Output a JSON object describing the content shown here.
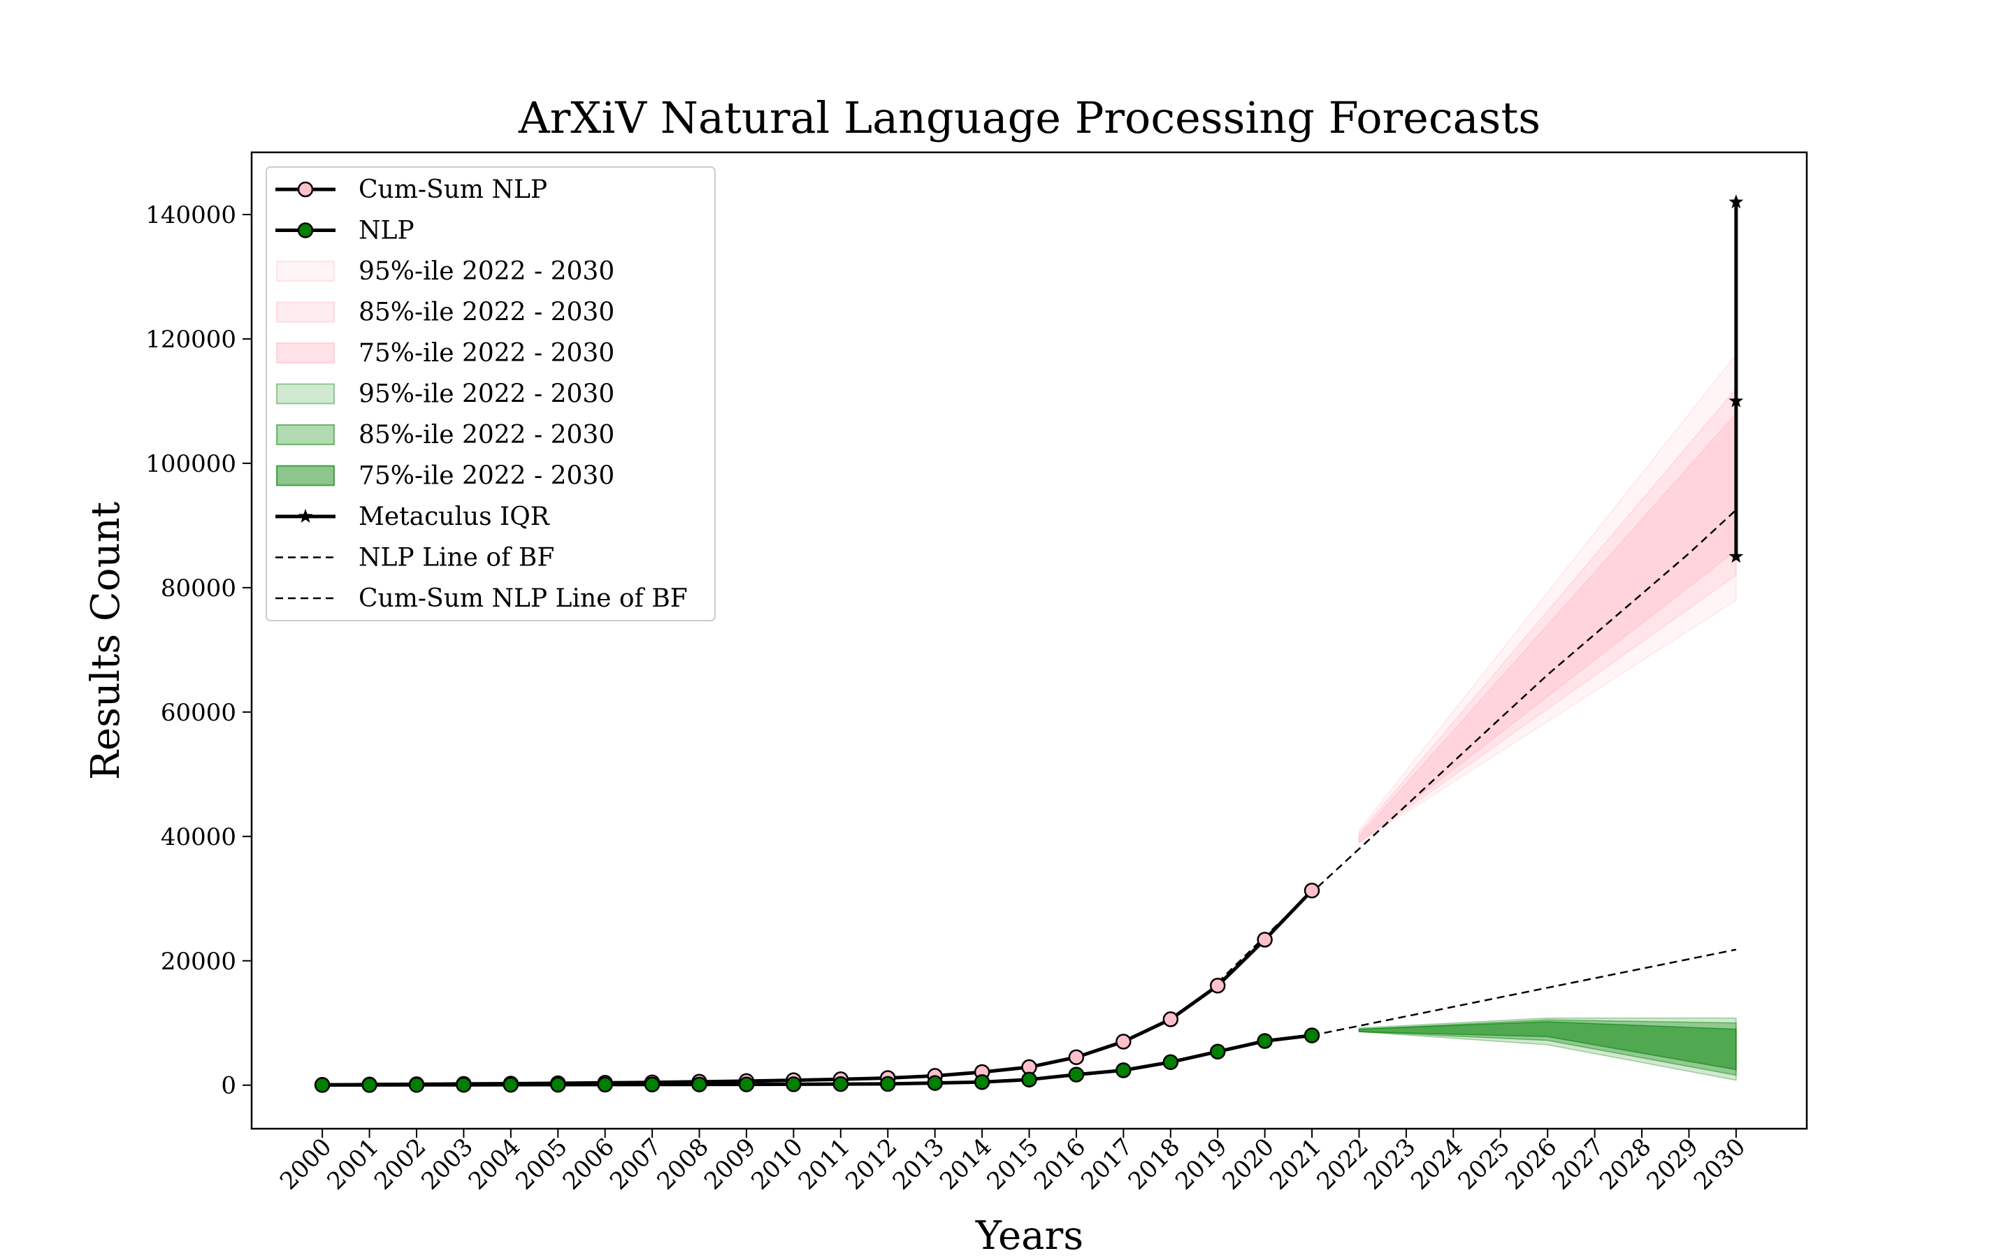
{
  "chart_data": {
    "type": "line",
    "title": "ArXiV Natural Language Processing Forecasts",
    "xlabel": "Years",
    "ylabel": "Results Count",
    "xlim": [
      1998.5,
      2031.5
    ],
    "ylim": [
      -7000,
      150000
    ],
    "grid": false,
    "legend_position": "top-left",
    "x_ticks": [
      2000,
      2001,
      2002,
      2003,
      2004,
      2005,
      2006,
      2007,
      2008,
      2009,
      2010,
      2011,
      2012,
      2013,
      2014,
      2015,
      2016,
      2017,
      2018,
      2019,
      2020,
      2021,
      2022,
      2023,
      2024,
      2025,
      2026,
      2027,
      2028,
      2029,
      2030
    ],
    "y_ticks": [
      0,
      20000,
      40000,
      60000,
      80000,
      100000,
      120000,
      140000
    ],
    "series": [
      {
        "name": "Cum-Sum NLP",
        "kind": "line-markers",
        "marker_color": "#ffc0cb",
        "x": [
          2000,
          2001,
          2002,
          2003,
          2004,
          2005,
          2006,
          2007,
          2008,
          2009,
          2010,
          2011,
          2012,
          2013,
          2014,
          2015,
          2016,
          2017,
          2018,
          2019,
          2020,
          2021
        ],
        "y": [
          50,
          100,
          150,
          200,
          250,
          300,
          380,
          450,
          550,
          650,
          800,
          950,
          1150,
          1500,
          2100,
          2900,
          4500,
          7000,
          10600,
          16000,
          23400,
          31300
        ]
      },
      {
        "name": "NLP",
        "kind": "line-markers",
        "marker_color": "#008000",
        "x": [
          2000,
          2001,
          2002,
          2003,
          2004,
          2005,
          2006,
          2007,
          2008,
          2009,
          2010,
          2011,
          2012,
          2013,
          2014,
          2015,
          2016,
          2017,
          2018,
          2019,
          2020,
          2021
        ],
        "y": [
          30,
          40,
          50,
          60,
          70,
          80,
          90,
          100,
          110,
          120,
          150,
          180,
          200,
          350,
          500,
          900,
          1700,
          2400,
          3700,
          5400,
          7100,
          8000
        ]
      }
    ],
    "bands": [
      {
        "name": "95%-ile 2022 - 2030",
        "color": "#ffc0cb",
        "opacity": 0.18,
        "x": [
          2022,
          2030
        ],
        "low": [
          39000,
          78000
        ],
        "high": [
          41000,
          117500
        ]
      },
      {
        "name": "85%-ile 2022 - 2030",
        "color": "#ffc0cb",
        "opacity": 0.3,
        "x": [
          2022,
          2030
        ],
        "low": [
          39000,
          82000
        ],
        "high": [
          40500,
          112000
        ]
      },
      {
        "name": "75%-ile 2022 - 2030",
        "color": "#ffc0cb",
        "opacity": 0.45,
        "x": [
          2022,
          2030
        ],
        "low": [
          39000,
          86000
        ],
        "high": [
          40000,
          108000
        ]
      },
      {
        "name": "95%-ile 2022 - 2030",
        "color": "#008000",
        "opacity": 0.18,
        "x": [
          2022,
          2026,
          2030
        ],
        "low": [
          8600,
          6500,
          800
        ],
        "high": [
          9200,
          10800,
          10800
        ]
      },
      {
        "name": "85%-ile 2022 - 2030",
        "color": "#008000",
        "opacity": 0.3,
        "x": [
          2022,
          2026,
          2030
        ],
        "low": [
          8600,
          7200,
          1600
        ],
        "high": [
          9000,
          10500,
          10000
        ]
      },
      {
        "name": "75%-ile 2022 - 2030",
        "color": "#008000",
        "opacity": 0.45,
        "x": [
          2022,
          2026,
          2030
        ],
        "low": [
          8600,
          7800,
          2500
        ],
        "high": [
          9000,
          10200,
          9000
        ]
      }
    ],
    "metaculus_iqr": {
      "name": "Metaculus IQR",
      "x": 2030,
      "values": [
        85000,
        110000,
        142000
      ]
    },
    "best_fit_lines": [
      {
        "name": "NLP Line of BF",
        "x": [
          2021,
          2030
        ],
        "y": [
          8000,
          21800
        ]
      },
      {
        "name": "Cum-Sum NLP Line of BF",
        "x": [
          2019,
          2020,
          2021,
          2022,
          2023,
          2024,
          2025,
          2026,
          2027,
          2028,
          2029,
          2030
        ],
        "y": [
          16500,
          23900,
          31000,
          38000,
          45000,
          52000,
          59000,
          66000,
          72500,
          79000,
          85500,
          92500
        ]
      }
    ],
    "legend": [
      {
        "label": "Cum-Sum NLP",
        "kind": "line-marker",
        "color": "#ffc0cb"
      },
      {
        "label": "NLP",
        "kind": "line-marker",
        "color": "#008000"
      },
      {
        "label": "95%-ile 2022 - 2030",
        "kind": "patch",
        "color": "#ffc0cb",
        "opacity": 0.18
      },
      {
        "label": "85%-ile 2022 - 2030",
        "kind": "patch",
        "color": "#ffc0cb",
        "opacity": 0.3
      },
      {
        "label": "75%-ile 2022 - 2030",
        "kind": "patch",
        "color": "#ffc0cb",
        "opacity": 0.45
      },
      {
        "label": "95%-ile 2022 - 2030",
        "kind": "patch",
        "color": "#008000",
        "opacity": 0.18
      },
      {
        "label": "85%-ile 2022 - 2030",
        "kind": "patch",
        "color": "#008000",
        "opacity": 0.3
      },
      {
        "label": "75%-ile 2022 - 2030",
        "kind": "patch",
        "color": "#008000",
        "opacity": 0.45
      },
      {
        "label": "Metaculus IQR",
        "kind": "line-star",
        "color": "#000000"
      },
      {
        "label": "NLP Line of BF",
        "kind": "dashed",
        "color": "#000000"
      },
      {
        "label": "Cum-Sum NLP Line of BF",
        "kind": "dashed",
        "color": "#000000"
      }
    ]
  }
}
